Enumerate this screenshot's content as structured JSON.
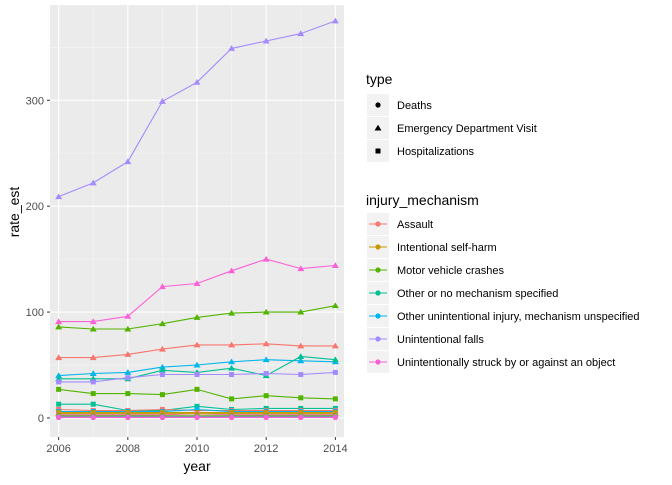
{
  "chart_data": {
    "type": "line",
    "xlabel": "year",
    "ylabel": "rate_est",
    "xlim": [
      2005.75,
      2014.25
    ],
    "ylim": [
      -18,
      390
    ],
    "x_ticks": [
      2006,
      2008,
      2010,
      2012,
      2014
    ],
    "y_ticks": [
      0,
      100,
      200,
      300
    ],
    "x_tick_labels": [
      "2006",
      "2008",
      "2010",
      "2012",
      "2014"
    ],
    "y_tick_labels": [
      "0",
      "100",
      "200",
      "300"
    ],
    "grid": true,
    "legend_position": "right",
    "x": [
      2006,
      2007,
      2008,
      2009,
      2010,
      2011,
      2012,
      2013,
      2014
    ],
    "type_legend": {
      "title": "type",
      "items": [
        {
          "label": "Deaths",
          "shape": "circle"
        },
        {
          "label": "Emergency Department Visit",
          "shape": "triangle"
        },
        {
          "label": "Hospitalizations",
          "shape": "square"
        }
      ]
    },
    "mechanism_legend": {
      "title": "injury_mechanism",
      "items": [
        {
          "label": "Assault",
          "color": "#F8766D"
        },
        {
          "label": "Intentional self-harm",
          "color": "#C49A00"
        },
        {
          "label": "Motor vehicle crashes",
          "color": "#53B400"
        },
        {
          "label": "Other or no mechanism specified",
          "color": "#00C094"
        },
        {
          "label": "Other unintentional injury, mechanism unspecified",
          "color": "#00B6EB"
        },
        {
          "label": "Unintentional falls",
          "color": "#A58AFF"
        },
        {
          "label": "Unintentionally struck by or against an object",
          "color": "#FB61D7"
        }
      ]
    },
    "series": [
      {
        "mechanism": "Unintentional falls",
        "type": "Emergency Department Visit",
        "values": [
          209,
          222,
          242,
          299,
          317,
          349,
          356,
          363,
          375
        ]
      },
      {
        "mechanism": "Unintentionally struck by or against an object",
        "type": "Emergency Department Visit",
        "values": [
          91,
          91,
          96,
          124,
          127,
          139,
          150,
          141,
          144
        ]
      },
      {
        "mechanism": "Motor vehicle crashes",
        "type": "Emergency Department Visit",
        "values": [
          86,
          84,
          84,
          89,
          95,
          99,
          100,
          100,
          106
        ]
      },
      {
        "mechanism": "Assault",
        "type": "Emergency Department Visit",
        "values": [
          57,
          57,
          60,
          65,
          69,
          69,
          70,
          68,
          68
        ]
      },
      {
        "mechanism": "Other unintentional injury, mechanism unspecified",
        "type": "Emergency Department Visit",
        "values": [
          40,
          42,
          43,
          48,
          50,
          53,
          55,
          54,
          53
        ]
      },
      {
        "mechanism": "Other or no mechanism specified",
        "type": "Emergency Department Visit",
        "values": [
          37,
          37,
          37,
          45,
          43,
          47,
          40,
          58,
          55
        ]
      },
      {
        "mechanism": "Unintentional falls",
        "type": "Hospitalizations",
        "values": [
          34,
          34,
          38,
          41,
          41,
          41,
          42,
          41,
          43
        ]
      },
      {
        "mechanism": "Motor vehicle crashes",
        "type": "Hospitalizations",
        "values": [
          27,
          23,
          23,
          22,
          27,
          18,
          21,
          19,
          18
        ]
      },
      {
        "mechanism": "Other or no mechanism specified",
        "type": "Hospitalizations",
        "values": [
          13,
          13,
          7,
          7,
          11,
          8,
          9,
          9,
          9
        ]
      },
      {
        "mechanism": "Assault",
        "type": "Hospitalizations",
        "values": [
          8,
          7,
          7,
          8,
          7,
          7,
          7,
          7,
          7
        ]
      },
      {
        "mechanism": "Other unintentional injury, mechanism unspecified",
        "type": "Hospitalizations",
        "values": [
          6,
          6,
          6,
          6,
          8,
          6,
          6,
          6,
          6
        ]
      },
      {
        "mechanism": "Intentional self-harm",
        "type": "Hospitalizations",
        "values": [
          5,
          5,
          5,
          5,
          5,
          5,
          5,
          5,
          5
        ]
      },
      {
        "mechanism": "Unintentionally struck by or against an object",
        "type": "Hospitalizations",
        "values": [
          3,
          3,
          3,
          3,
          4,
          3,
          3,
          3,
          3
        ]
      },
      {
        "mechanism": "Intentional self-harm",
        "type": "Emergency Department Visit",
        "values": [
          4,
          4,
          4,
          4,
          4,
          4,
          4,
          4,
          4
        ]
      },
      {
        "mechanism": "Motor vehicle crashes",
        "type": "Deaths",
        "values": [
          2,
          2,
          2,
          2,
          2,
          2,
          2,
          2,
          2
        ]
      },
      {
        "mechanism": "Unintentional falls",
        "type": "Deaths",
        "values": [
          1.5,
          1.5,
          1.5,
          1.5,
          1.5,
          1.5,
          1.5,
          1.5,
          1.5
        ]
      },
      {
        "mechanism": "Assault",
        "type": "Deaths",
        "values": [
          1,
          1,
          1,
          1,
          1,
          1,
          1,
          1,
          1
        ]
      },
      {
        "mechanism": "Intentional self-harm",
        "type": "Deaths",
        "values": [
          1,
          1,
          1,
          1,
          1,
          1,
          1,
          1,
          1
        ]
      },
      {
        "mechanism": "Other or no mechanism specified",
        "type": "Deaths",
        "values": [
          0.6,
          0.6,
          0.6,
          0.6,
          0.6,
          0.6,
          0.6,
          0.6,
          0.6
        ]
      },
      {
        "mechanism": "Other unintentional injury, mechanism unspecified",
        "type": "Deaths",
        "values": [
          0.6,
          0.6,
          0.6,
          0.6,
          0.6,
          0.6,
          0.6,
          0.6,
          0.6
        ]
      },
      {
        "mechanism": "Unintentionally struck by or against an object",
        "type": "Deaths",
        "values": [
          0.4,
          0.4,
          0.4,
          0.4,
          0.4,
          0.4,
          0.4,
          0.4,
          0.4
        ]
      }
    ]
  }
}
